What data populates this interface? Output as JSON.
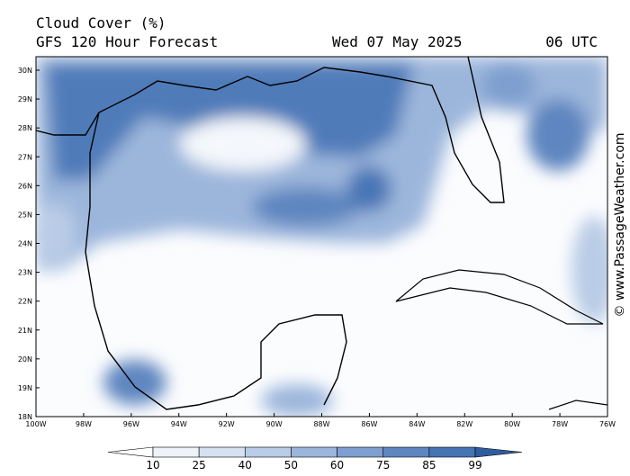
{
  "header": {
    "title": "Cloud Cover (%)",
    "subtitle": "GFS 120 Hour Forecast",
    "date": "Wed 07 May 2025",
    "time": "06 UTC"
  },
  "map": {
    "lat_ticks": [
      "30N",
      "29N",
      "28N",
      "27N",
      "26N",
      "25N",
      "24N",
      "23N",
      "22N",
      "21N",
      "20N",
      "19N",
      "18N"
    ],
    "lon_ticks": [
      "100W",
      "98W",
      "96W",
      "94W",
      "92W",
      "90W",
      "88W",
      "86W",
      "84W",
      "82W",
      "80W",
      "78W",
      "76W"
    ]
  },
  "colorbar": {
    "levels": [
      10,
      25,
      40,
      50,
      60,
      75,
      85,
      99
    ],
    "colors": [
      "#ffffff",
      "#eef2f9",
      "#d5e0f0",
      "#b9cce6",
      "#9cb6db",
      "#7e9fcf",
      "#5f86c0",
      "#4673b4",
      "#2f5c9e"
    ]
  },
  "watermark": "© www.PassageWeather.com"
}
